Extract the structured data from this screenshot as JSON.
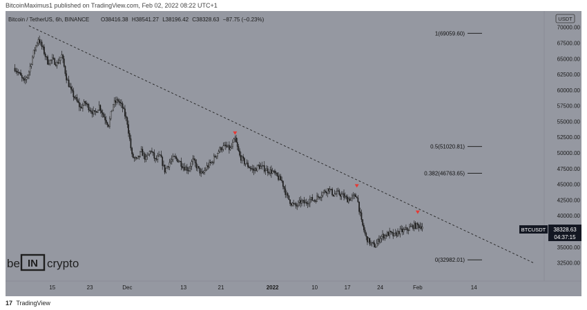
{
  "header": {
    "published_text": "BitcoinMaximus1 published on TradingView.com, Feb 02, 2022 08:22 UTC+1"
  },
  "footer": {
    "brand_icon": "tradingview-logo-icon",
    "brand_text": "TradingView"
  },
  "watermark": {
    "text_left": "be",
    "text_mid": "IN",
    "text_right": "crypto"
  },
  "colors": {
    "panel_bg": "#9598a1",
    "candle": "#1e1e1e",
    "marker": "#e53935",
    "label_bg": "#131722",
    "axis_text": "#1a1a1a"
  },
  "chart_data": {
    "type": "candlestick",
    "title": "Bitcoin / TetherUS, 6h, BINANCE",
    "ohlc_text": {
      "open": "O38416.38",
      "high": "H38541.27",
      "low": "L38196.42",
      "close": "C38328.63",
      "change": "−87.75 (−0.23%)"
    },
    "currency_label": "USDT",
    "price_label": "BTCUSDT",
    "current_price": "38328.63",
    "countdown": "04:37:15",
    "y_ticks": [
      "70000.00",
      "67500.00",
      "65000.00",
      "62500.00",
      "60000.00",
      "57500.00",
      "55000.00",
      "52500.00",
      "50000.00",
      "47500.00",
      "45000.00",
      "42500.00",
      "40000.00",
      "37500.00",
      "35000.00",
      "32500.00"
    ],
    "x_ticks": [
      {
        "label": "15",
        "day": 15
      },
      {
        "label": "23",
        "day": 23
      },
      {
        "label": "Dec",
        "day": 31
      },
      {
        "label": "13",
        "day": 43
      },
      {
        "label": "21",
        "day": 51
      },
      {
        "label": "2022",
        "day": 62,
        "bold": true
      },
      {
        "label": "10",
        "day": 71
      },
      {
        "label": "17",
        "day": 78
      },
      {
        "label": "24",
        "day": 85
      },
      {
        "label": "Feb",
        "day": 93
      },
      {
        "label": "14",
        "day": 105
      }
    ],
    "fib_levels": [
      {
        "label": "1(69059.60)",
        "value": 69059.6
      },
      {
        "label": "0.5(51020.81)",
        "value": 51020.81
      },
      {
        "label": "0.382(46763.65)",
        "value": 46763.65
      },
      {
        "label": "0(32982.01)",
        "value": 32982.01
      }
    ],
    "price_path": [
      [
        7,
        63500
      ],
      [
        8,
        62500
      ],
      [
        9,
        61200
      ],
      [
        10,
        63000
      ],
      [
        11,
        66000
      ],
      [
        12,
        68200
      ],
      [
        13,
        66500
      ],
      [
        14,
        64500
      ],
      [
        15,
        64800
      ],
      [
        16,
        64200
      ],
      [
        17,
        65500
      ],
      [
        18,
        62000
      ],
      [
        19,
        59800
      ],
      [
        20,
        58500
      ],
      [
        21,
        57200
      ],
      [
        22,
        58000
      ],
      [
        23,
        57000
      ],
      [
        24,
        56200
      ],
      [
        25,
        57500
      ],
      [
        26,
        55800
      ],
      [
        27,
        54500
      ],
      [
        28,
        57800
      ],
      [
        29,
        58400
      ],
      [
        30,
        57200
      ],
      [
        31,
        54800
      ],
      [
        32,
        49500
      ],
      [
        33,
        48800
      ],
      [
        34,
        50200
      ],
      [
        35,
        49000
      ],
      [
        36,
        50500
      ],
      [
        37,
        48800
      ],
      [
        38,
        49500
      ],
      [
        39,
        47200
      ],
      [
        40,
        48500
      ],
      [
        41,
        49200
      ],
      [
        42,
        48800
      ],
      [
        43,
        47800
      ],
      [
        44,
        47400
      ],
      [
        45,
        48800
      ],
      [
        46,
        47600
      ],
      [
        47,
        46500
      ],
      [
        48,
        47800
      ],
      [
        49,
        48500
      ],
      [
        50,
        49800
      ],
      [
        51,
        50800
      ],
      [
        52,
        51000
      ],
      [
        53,
        50600
      ],
      [
        54,
        52200
      ],
      [
        55,
        49500
      ],
      [
        56,
        48500
      ],
      [
        57,
        47800
      ],
      [
        58,
        47200
      ],
      [
        59,
        47900
      ],
      [
        60,
        47600
      ],
      [
        61,
        47200
      ],
      [
        62,
        47000
      ],
      [
        63,
        46200
      ],
      [
        64,
        45500
      ],
      [
        65,
        43200
      ],
      [
        66,
        42000
      ],
      [
        67,
        41500
      ],
      [
        68,
        42200
      ],
      [
        69,
        42000
      ],
      [
        70,
        42600
      ],
      [
        71,
        42500
      ],
      [
        72,
        43200
      ],
      [
        73,
        43800
      ],
      [
        74,
        44300
      ],
      [
        75,
        43400
      ],
      [
        76,
        43600
      ],
      [
        77,
        43200
      ],
      [
        78,
        42600
      ],
      [
        79,
        42900
      ],
      [
        80,
        43200
      ],
      [
        81,
        39000
      ],
      [
        82,
        36500
      ],
      [
        83,
        35500
      ],
      [
        84,
        35200
      ],
      [
        85,
        36600
      ],
      [
        86,
        36900
      ],
      [
        87,
        37200
      ],
      [
        88,
        36800
      ],
      [
        89,
        37500
      ],
      [
        90,
        37600
      ],
      [
        91,
        37900
      ],
      [
        92,
        38400
      ],
      [
        93,
        38400
      ],
      [
        94,
        38328
      ]
    ],
    "trendline": {
      "start": [
        10,
        70250
      ],
      "end": [
        118,
        32400
      ]
    },
    "markers": [
      {
        "day": 54,
        "price": 53100
      },
      {
        "day": 80,
        "price": 44700
      },
      {
        "day": 93,
        "price": 40500
      }
    ],
    "domain": {
      "day_min": 5,
      "day_max": 120,
      "price_min": 29600,
      "price_max": 72600
    }
  }
}
